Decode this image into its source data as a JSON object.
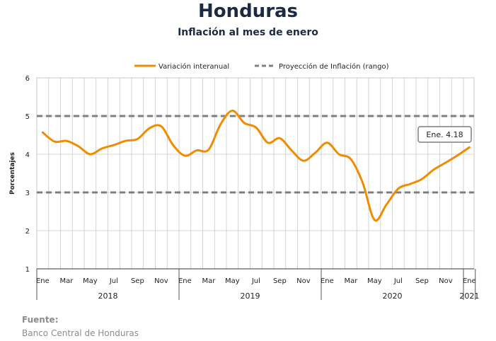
{
  "title": "Honduras",
  "subtitle": "Inflación al mes de enero",
  "source": {
    "label": "Fuente:",
    "text": "Banco Central de Honduras"
  },
  "colors": {
    "series": "#f08c00",
    "projection": "#7f7f7f",
    "grid": "#c8c8c8",
    "title": "#1c2a44"
  },
  "chart_data": {
    "type": "line",
    "ylabel": "Porcentajes",
    "ylim": [
      1,
      6
    ],
    "yticks": [
      1,
      2,
      3,
      4,
      5,
      6
    ],
    "grid": true,
    "legend_position": "top-center",
    "month_labels": [
      "Ene",
      "Mar",
      "May",
      "Jul",
      "Sep",
      "Nov",
      "Ene",
      "Mar",
      "May",
      "Jul",
      "Sep",
      "Nov",
      "Ene",
      "Mar",
      "May",
      "Jul",
      "Sep",
      "Nov",
      "Ene"
    ],
    "years": [
      "2018",
      "2019",
      "2020",
      "2021"
    ],
    "x": [
      "2018-01",
      "2018-02",
      "2018-03",
      "2018-04",
      "2018-05",
      "2018-06",
      "2018-07",
      "2018-08",
      "2018-09",
      "2018-10",
      "2018-11",
      "2018-12",
      "2019-01",
      "2019-02",
      "2019-03",
      "2019-04",
      "2019-05",
      "2019-06",
      "2019-07",
      "2019-08",
      "2019-09",
      "2019-10",
      "2019-11",
      "2019-12",
      "2020-01",
      "2020-02",
      "2020-03",
      "2020-04",
      "2020-05",
      "2020-06",
      "2020-07",
      "2020-08",
      "2020-09",
      "2020-10",
      "2020-11",
      "2020-12",
      "2021-01"
    ],
    "series": [
      {
        "name": "Variación interanual",
        "style": "solid",
        "values": [
          4.57,
          4.33,
          4.35,
          4.21,
          4.0,
          4.15,
          4.24,
          4.35,
          4.4,
          4.68,
          4.73,
          4.24,
          3.96,
          4.1,
          4.12,
          4.78,
          5.14,
          4.82,
          4.7,
          4.3,
          4.42,
          4.1,
          3.83,
          4.04,
          4.3,
          4.0,
          3.87,
          3.25,
          2.28,
          2.68,
          3.1,
          3.22,
          3.35,
          3.6,
          3.78,
          3.97,
          4.18
        ]
      },
      {
        "name": "Proyección de Inflación (rango)",
        "style": "dashed",
        "bounds": [
          3.0,
          5.0
        ]
      }
    ],
    "annotation": "Ene. 4.18"
  }
}
